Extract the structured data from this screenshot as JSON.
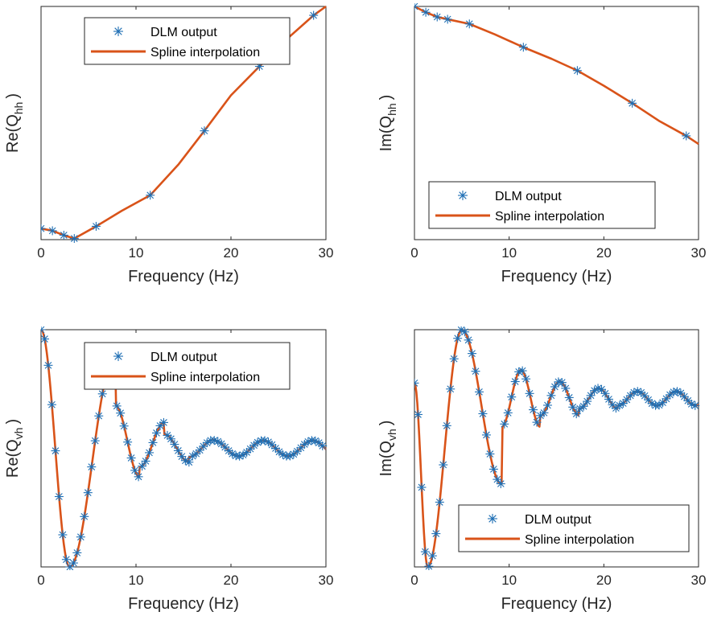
{
  "colors": {
    "marker": "#1f6fb4",
    "line": "#d95319",
    "axis": "#262626"
  },
  "chart_data": [
    {
      "type": "line",
      "xlabel": "Frequency (Hz)",
      "ylabel_main": "Re(Q",
      "ylabel_sub": "hh",
      "ylabel_close": ")",
      "xlim": [
        0,
        30
      ],
      "ylim": [
        -0.05,
        1.0
      ],
      "xticks": [
        0,
        10,
        20,
        30
      ],
      "legend_position": "top",
      "series": [
        {
          "name": "DLM output",
          "style": "markers",
          "x": [
            0,
            1.2,
            2.4,
            3.5,
            5.8,
            11.5,
            17.2,
            23.0,
            28.7
          ],
          "y": [
            0.0,
            -0.01,
            -0.03,
            -0.045,
            0.01,
            0.15,
            0.44,
            0.73,
            0.96
          ]
        },
        {
          "name": "Spline interpolation",
          "style": "line",
          "x": [
            0,
            1.2,
            2.4,
            3.5,
            5.8,
            8.5,
            11.5,
            14.5,
            17.2,
            20.0,
            23.0,
            25.8,
            28.7,
            30.0
          ],
          "y": [
            0.0,
            -0.01,
            -0.03,
            -0.045,
            0.01,
            0.08,
            0.15,
            0.29,
            0.44,
            0.6,
            0.73,
            0.85,
            0.96,
            1.0
          ]
        }
      ]
    },
    {
      "type": "line",
      "xlabel": "Frequency (Hz)",
      "ylabel_main": "Im(Q",
      "ylabel_sub": "hh",
      "ylabel_close": ")",
      "xlim": [
        0,
        30
      ],
      "ylim": [
        -1.0,
        0.0
      ],
      "xticks": [
        0,
        10,
        20,
        30
      ],
      "legend_position": "bottom",
      "series": [
        {
          "name": "DLM output",
          "style": "markers",
          "x": [
            0,
            1.2,
            2.4,
            3.5,
            5.8,
            11.5,
            17.2,
            23.0,
            28.7
          ],
          "y": [
            0.0,
            -0.025,
            -0.045,
            -0.055,
            -0.075,
            -0.175,
            -0.275,
            -0.415,
            -0.555
          ]
        },
        {
          "name": "Spline interpolation",
          "style": "line",
          "x": [
            0,
            1.2,
            2.4,
            3.5,
            5.8,
            8.5,
            11.5,
            14.5,
            17.2,
            20.0,
            23.0,
            25.8,
            28.7,
            30.0
          ],
          "y": [
            0.0,
            -0.025,
            -0.045,
            -0.055,
            -0.075,
            -0.12,
            -0.175,
            -0.225,
            -0.275,
            -0.34,
            -0.415,
            -0.49,
            -0.555,
            -0.59
          ]
        }
      ]
    },
    {
      "type": "line",
      "xlabel": "Frequency (Hz)",
      "ylabel_main": "Re(Q",
      "ylabel_sub": "vh",
      "ylabel_close": ")",
      "xlim": [
        0,
        30
      ],
      "ylim": [
        -1.0,
        1.0
      ],
      "xticks": [
        0,
        10,
        20,
        30
      ],
      "legend_position": "top",
      "series": [
        {
          "name": "DLM output",
          "style": "markers",
          "x": [],
          "y": []
        },
        {
          "name": "Spline interpolation",
          "style": "line",
          "x": [],
          "y": []
        }
      ]
    },
    {
      "type": "line",
      "xlabel": "Frequency (Hz)",
      "ylabel_main": "Im(Q",
      "ylabel_sub": "vh",
      "ylabel_close": ")",
      "xlim": [
        0,
        30
      ],
      "ylim": [
        -1.0,
        1.0
      ],
      "xticks": [
        0,
        10,
        20,
        30
      ],
      "legend_position": "bottom",
      "series": [
        {
          "name": "DLM output",
          "style": "markers",
          "x": [],
          "y": []
        },
        {
          "name": "Spline interpolation",
          "style": "line",
          "x": [],
          "y": []
        }
      ]
    }
  ]
}
